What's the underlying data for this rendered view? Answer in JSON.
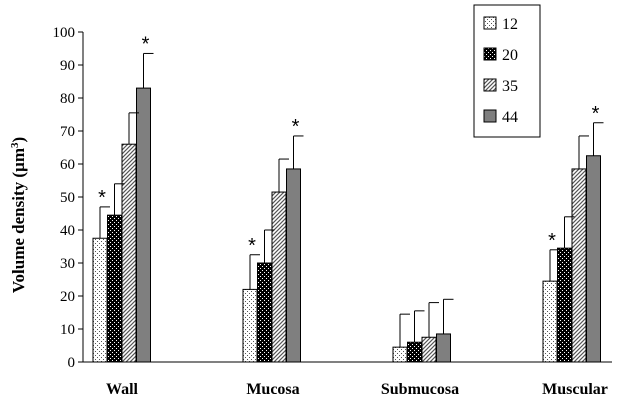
{
  "chart_data": {
    "type": "bar",
    "title": "",
    "xlabel": "",
    "ylabel": "Volume density (µm³)",
    "ylabel_main": "Volume density (µm",
    "ylabel_sup": "3",
    "ylabel_close": ")",
    "ylim": [
      0,
      100
    ],
    "yticks": [
      0,
      10,
      20,
      30,
      40,
      50,
      60,
      70,
      80,
      90,
      100
    ],
    "grid": false,
    "legend_position": "top-right",
    "categories": [
      "Wall",
      "Mucosa",
      "Submucosa",
      "Muscular"
    ],
    "series": [
      {
        "name": "12",
        "values": [
          37.5,
          22,
          4.5,
          24.5
        ],
        "errors": [
          9.5,
          10.5,
          10,
          9.5
        ],
        "color": "#ffffff",
        "pattern": "dots"
      },
      {
        "name": "20",
        "values": [
          44.5,
          30,
          6,
          34.5
        ],
        "errors": [
          9.5,
          10,
          9.5,
          9.5
        ],
        "color": "#111111",
        "pattern": "checker"
      },
      {
        "name": "35",
        "values": [
          66,
          51.5,
          7.5,
          58.5
        ],
        "errors": [
          9.5,
          10,
          10.5,
          10
        ],
        "color": "#d8d8d8",
        "pattern": "diagonal"
      },
      {
        "name": "44",
        "values": [
          83,
          58.5,
          8.5,
          62.5
        ],
        "errors": [
          10.5,
          10,
          10.5,
          10
        ],
        "color": "#7f7f7f",
        "pattern": "solid"
      }
    ],
    "significance": [
      {
        "category": 0,
        "series": 0,
        "label": "*"
      },
      {
        "category": 0,
        "series": 3,
        "label": "*"
      },
      {
        "category": 1,
        "series": 0,
        "label": "*"
      },
      {
        "category": 1,
        "series": 3,
        "label": "*"
      },
      {
        "category": 3,
        "series": 0,
        "label": "*"
      },
      {
        "category": 3,
        "series": 3,
        "label": "*"
      }
    ]
  }
}
